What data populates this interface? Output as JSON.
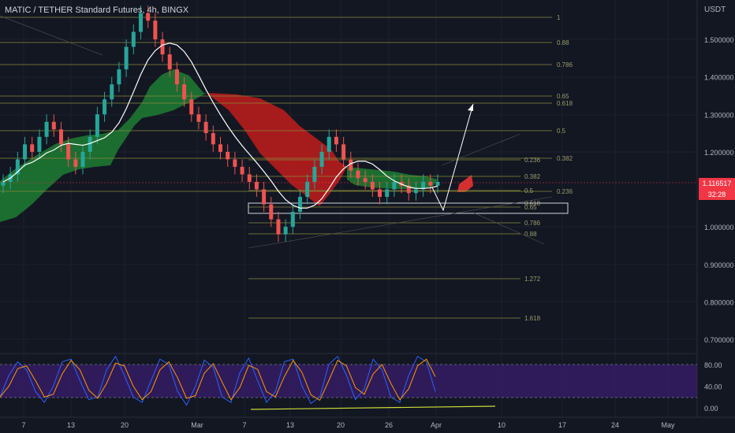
{
  "header": {
    "title": "MATIC / TETHER Standard Futures, 4h, BINGX",
    "currency": "USDT"
  },
  "last_price": {
    "value": "1.116517",
    "countdown": "32:28"
  },
  "chart_data": {
    "type": "candlestick",
    "title": "MATIC / TETHER Standard Futures, 4h, BINGX",
    "ylim": [
      0.7,
      1.6
    ],
    "y_ticks": [
      "1.500000",
      "1.400000",
      "1.300000",
      "1.200000",
      "1.000000",
      "0.900000",
      "0.800000",
      "0.700000"
    ],
    "x_ticks": [
      "7",
      "13",
      "20",
      "Mar",
      "7",
      "13",
      "20",
      "26",
      "Apr",
      "10",
      "17",
      "24",
      "May"
    ],
    "fib_upper": [
      {
        "level": "1",
        "price": 1.58
      },
      {
        "level": "0.88",
        "price": 1.495
      },
      {
        "level": "0.786",
        "price": 1.435
      },
      {
        "level": "0.65",
        "price": 1.355
      },
      {
        "level": "0.618",
        "price": 1.33
      },
      {
        "level": "0.5",
        "price": 1.258
      },
      {
        "level": "0.382",
        "price": 1.185
      },
      {
        "level": "0.236",
        "price": 1.08
      }
    ],
    "fib_lower": [
      {
        "level": "0.236",
        "price": 1.183
      },
      {
        "level": "0.382",
        "price": 1.14
      },
      {
        "level": "0.5",
        "price": 1.112
      },
      {
        "level": "0.618",
        "price": 1.085
      },
      {
        "level": "0.65",
        "price": 1.072
      },
      {
        "level": "0.786",
        "price": 1.028
      },
      {
        "level": "0.88",
        "price": 0.997
      },
      {
        "level": "1.272",
        "price": 0.862
      },
      {
        "level": "1.618",
        "price": 0.753
      }
    ],
    "support_zone": [
      1.052,
      1.068
    ],
    "candles_close": [
      1.12,
      1.14,
      1.18,
      1.22,
      1.2,
      1.24,
      1.28,
      1.26,
      1.22,
      1.18,
      1.16,
      1.2,
      1.24,
      1.3,
      1.34,
      1.38,
      1.42,
      1.48,
      1.52,
      1.57,
      1.55,
      1.5,
      1.46,
      1.42,
      1.38,
      1.34,
      1.3,
      1.28,
      1.25,
      1.22,
      1.2,
      1.18,
      1.16,
      1.14,
      1.12,
      1.1,
      1.06,
      1.02,
      0.98,
      1.0,
      1.04,
      1.08,
      1.12,
      1.16,
      1.2,
      1.24,
      1.22,
      1.18,
      1.15,
      1.13,
      1.12,
      1.1,
      1.08,
      1.1,
      1.12,
      1.11,
      1.09,
      1.1,
      1.12,
      1.11,
      1.12
    ],
    "stoch_rsi": {
      "y_ticks": [
        "80.00",
        "40.00",
        "0.00"
      ],
      "k": [
        20,
        60,
        85,
        70,
        30,
        10,
        40,
        85,
        90,
        50,
        15,
        20,
        70,
        95,
        60,
        20,
        10,
        50,
        90,
        80,
        30,
        5,
        40,
        88,
        75,
        20,
        10,
        65,
        92,
        50,
        10,
        30,
        85,
        90,
        40,
        8,
        20,
        80,
        95,
        60,
        15,
        35,
        90,
        70,
        20,
        10,
        60,
        95,
        85,
        30
      ]
    },
    "projection": "path down to ~1.05 then up to ~1.34"
  }
}
